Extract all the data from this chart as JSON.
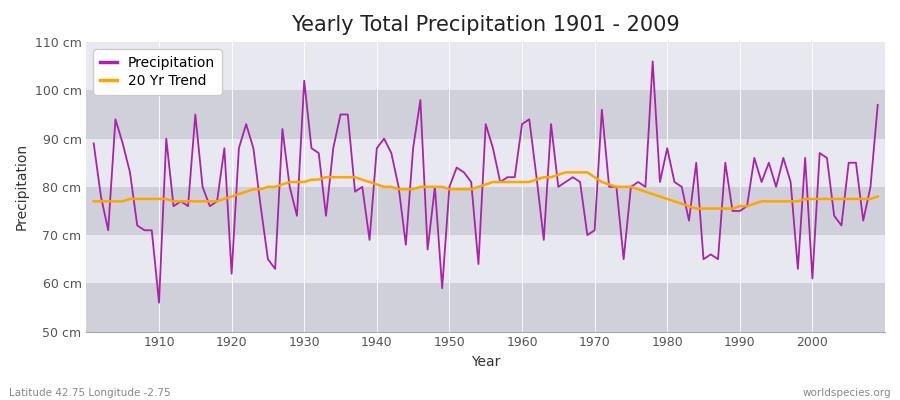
{
  "title": "Yearly Total Precipitation 1901 - 2009",
  "xlabel": "Year",
  "ylabel": "Precipitation",
  "subtitle_left": "Latitude 42.75 Longitude -2.75",
  "subtitle_right": "worldspecies.org",
  "ylim": [
    50,
    110
  ],
  "yticks": [
    50,
    60,
    70,
    80,
    90,
    100,
    110
  ],
  "ytick_labels": [
    "50 cm",
    "60 cm",
    "70 cm",
    "80 cm",
    "90 cm",
    "100 cm",
    "110 cm"
  ],
  "years": [
    1901,
    1902,
    1903,
    1904,
    1905,
    1906,
    1907,
    1908,
    1909,
    1910,
    1911,
    1912,
    1913,
    1914,
    1915,
    1916,
    1917,
    1918,
    1919,
    1920,
    1921,
    1922,
    1923,
    1924,
    1925,
    1926,
    1927,
    1928,
    1929,
    1930,
    1931,
    1932,
    1933,
    1934,
    1935,
    1936,
    1937,
    1938,
    1939,
    1940,
    1941,
    1942,
    1943,
    1944,
    1945,
    1946,
    1947,
    1948,
    1949,
    1950,
    1951,
    1952,
    1953,
    1954,
    1955,
    1956,
    1957,
    1958,
    1959,
    1960,
    1961,
    1962,
    1963,
    1964,
    1965,
    1966,
    1967,
    1968,
    1969,
    1970,
    1971,
    1972,
    1973,
    1974,
    1975,
    1976,
    1977,
    1978,
    1979,
    1980,
    1981,
    1982,
    1983,
    1984,
    1985,
    1986,
    1987,
    1988,
    1989,
    1990,
    1991,
    1992,
    1993,
    1994,
    1995,
    1996,
    1997,
    1998,
    1999,
    2000,
    2001,
    2002,
    2003,
    2004,
    2005,
    2006,
    2007,
    2008,
    2009
  ],
  "precip": [
    89,
    78,
    71,
    94,
    89,
    83,
    72,
    71,
    71,
    56,
    90,
    76,
    77,
    76,
    95,
    80,
    76,
    77,
    88,
    62,
    88,
    93,
    88,
    76,
    65,
    63,
    92,
    80,
    74,
    102,
    88,
    87,
    74,
    88,
    95,
    95,
    79,
    80,
    69,
    88,
    90,
    87,
    80,
    68,
    88,
    98,
    67,
    80,
    59,
    80,
    84,
    83,
    81,
    64,
    93,
    88,
    81,
    82,
    82,
    93,
    94,
    82,
    69,
    93,
    80,
    81,
    82,
    81,
    70,
    71,
    96,
    80,
    80,
    65,
    80,
    81,
    80,
    106,
    81,
    88,
    81,
    80,
    73,
    85,
    65,
    66,
    65,
    85,
    75,
    75,
    76,
    86,
    81,
    85,
    80,
    86,
    81,
    63,
    86,
    61,
    87,
    86,
    74,
    72,
    85,
    85,
    73,
    80,
    97
  ],
  "precip_color": "#aa22aa",
  "trend_color": "#FFA500",
  "fig_bg_color": "#ffffff",
  "plot_bg_color": "#e0e0e8",
  "band_color_dark": "#d0d0da",
  "band_color_light": "#e8e8f0",
  "grid_color": "#ffffff",
  "title_fontsize": 15,
  "label_fontsize": 10,
  "tick_fontsize": 9,
  "band_ranges": [
    [
      50,
      60
    ],
    [
      70,
      80
    ],
    [
      90,
      100
    ],
    [
      110,
      120
    ]
  ],
  "trend_values": [
    77,
    77,
    77,
    77,
    77,
    77.5,
    77.5,
    77.5,
    77.5,
    77.5,
    77.5,
    77,
    77,
    77,
    77,
    77,
    77,
    77,
    77.5,
    78,
    78.5,
    79,
    79.5,
    79.5,
    80,
    80,
    80.5,
    81,
    81,
    81,
    81.5,
    81.5,
    82,
    82,
    82,
    82,
    82,
    81.5,
    81,
    80.5,
    80,
    80,
    79.5,
    79.5,
    79.5,
    80,
    80,
    80,
    80,
    79.5,
    79.5,
    79.5,
    79.5,
    80,
    80.5,
    81,
    81,
    81,
    81,
    81,
    81,
    81.5,
    82,
    82,
    82.5,
    83,
    83,
    83,
    83,
    82,
    81,
    80.5,
    80,
    80,
    80,
    79.5,
    79,
    78.5,
    78,
    77.5,
    77,
    76.5,
    76,
    75.5,
    75.5,
    75.5,
    75.5,
    75.5,
    75.5,
    76,
    76,
    76.5,
    77,
    77,
    77,
    77,
    77,
    77,
    77.5,
    77.5,
    77.5,
    77.5,
    77.5,
    77.5,
    77.5,
    77.5,
    77.5,
    77.5,
    78
  ]
}
